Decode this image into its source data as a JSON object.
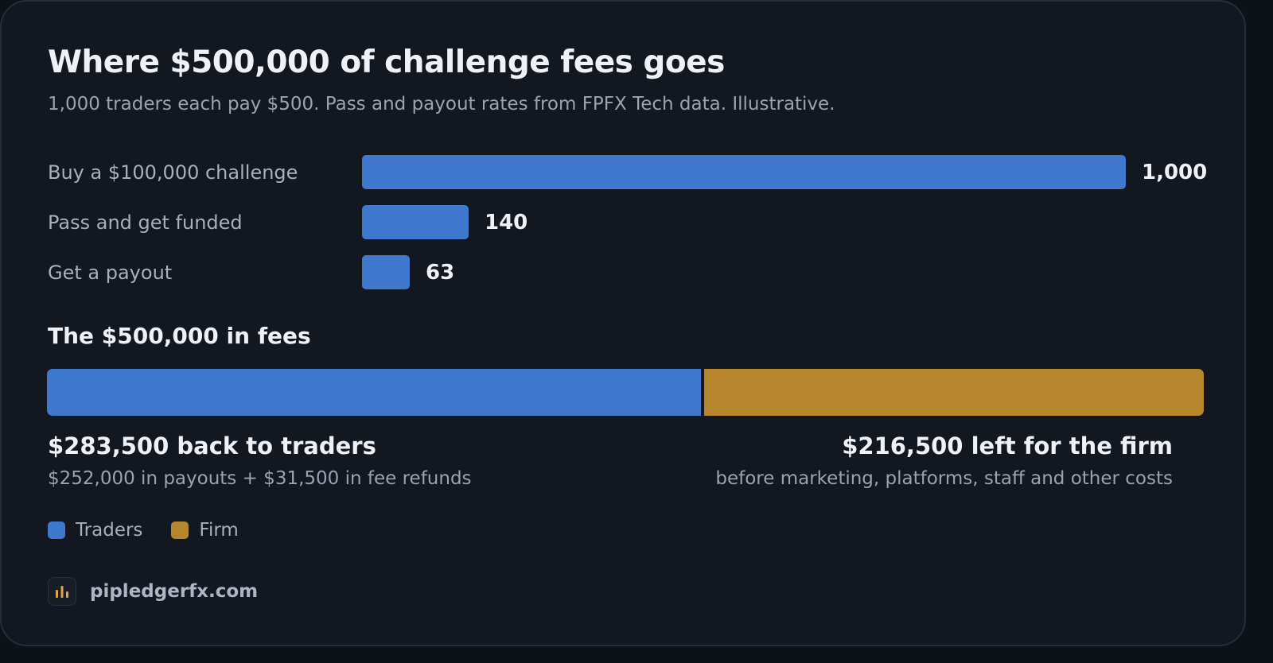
{
  "title": "Where $500,000 of challenge fees goes",
  "subtitle": "1,000 traders each pay $500. Pass and payout rates from FPFX Tech data. Illustrative.",
  "colors": {
    "traders": "#3f78cc",
    "firm": "#b5862c",
    "brand_icon_bars": "#e0a24a"
  },
  "chart_data": [
    {
      "type": "bar",
      "orientation": "horizontal",
      "categories": [
        "Buy a $100,000 challenge",
        "Pass and get funded",
        "Get a payout"
      ],
      "values": [
        1000,
        140,
        63
      ],
      "value_labels": [
        "1,000",
        "140",
        "63"
      ],
      "xlim": [
        0,
        1000
      ],
      "grid": false
    },
    {
      "type": "bar",
      "orientation": "horizontal",
      "stacked": true,
      "title": "The $500,000 in fees",
      "total": 500000,
      "series": [
        {
          "name": "Traders",
          "value": 283500,
          "label": "$283,500 back to traders",
          "detail": "$252,000 in payouts + $31,500 in fee refunds"
        },
        {
          "name": "Firm",
          "value": 216500,
          "label": "$216,500 left for the firm",
          "detail": "before marketing, platforms, staff and other costs"
        }
      ],
      "legend": {
        "position": "bottom-left",
        "items": [
          "Traders",
          "Firm"
        ]
      }
    }
  ],
  "brand": {
    "icon": "bar-chart-icon",
    "text": "pipledgerfx.com"
  }
}
